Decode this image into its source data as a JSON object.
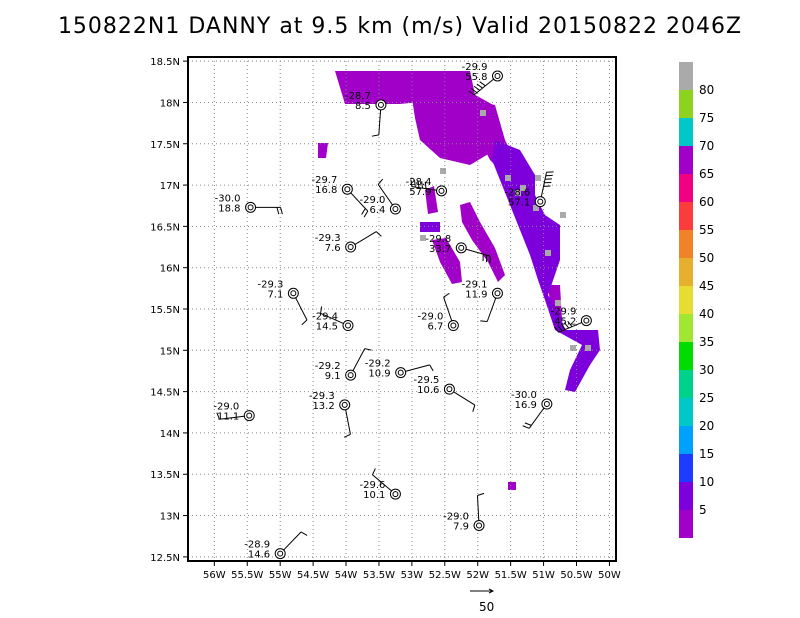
{
  "title": "150822N1 DANNY at 9.5 km (m/s) Valid 20150822 2046Z",
  "map": {
    "lon_range": [
      -56.4,
      -49.9
    ],
    "lat_range": [
      12.45,
      18.55
    ],
    "x_ticks": [
      {
        "v": -56.0,
        "label": "56W"
      },
      {
        "v": -55.5,
        "label": "55.5W"
      },
      {
        "v": -55.0,
        "label": "55W"
      },
      {
        "v": -54.5,
        "label": "54.5W"
      },
      {
        "v": -54.0,
        "label": "54W"
      },
      {
        "v": -53.5,
        "label": "53.5W"
      },
      {
        "v": -53.0,
        "label": "53W"
      },
      {
        "v": -52.5,
        "label": "52.5W"
      },
      {
        "v": -52.0,
        "label": "52W"
      },
      {
        "v": -51.5,
        "label": "51.5W"
      },
      {
        "v": -51.0,
        "label": "51W"
      },
      {
        "v": -50.5,
        "label": "50.5W"
      },
      {
        "v": -50.0,
        "label": "50W"
      }
    ],
    "y_ticks": [
      {
        "v": 12.5,
        "label": "12.5N"
      },
      {
        "v": 13.0,
        "label": "13N"
      },
      {
        "v": 13.5,
        "label": "13.5N"
      },
      {
        "v": 14.0,
        "label": "14N"
      },
      {
        "v": 14.5,
        "label": "14.5N"
      },
      {
        "v": 15.0,
        "label": "15N"
      },
      {
        "v": 15.5,
        "label": "15.5N"
      },
      {
        "v": 16.0,
        "label": "16N"
      },
      {
        "v": 16.5,
        "label": "16.5N"
      },
      {
        "v": 17.0,
        "label": "17N"
      },
      {
        "v": 17.5,
        "label": "17.5N"
      },
      {
        "v": 18.0,
        "label": "18N"
      },
      {
        "v": 18.5,
        "label": "18.5N"
      }
    ],
    "grid": true
  },
  "colorbar": {
    "labels": [
      "5",
      "10",
      "15",
      "20",
      "25",
      "30",
      "35",
      "40",
      "45",
      "50",
      "55",
      "60",
      "65",
      "70",
      "75",
      "80"
    ],
    "colors": [
      "#a000c8",
      "#7d00dc",
      "#1e3cff",
      "#00a0ff",
      "#00c8c8",
      "#00d28c",
      "#00dc00",
      "#a0e632",
      "#e6dc32",
      "#e6af2d",
      "#f08228",
      "#fa3c3c",
      "#f00082",
      "#a000c8",
      "#00c8c8",
      "#8cd21e",
      "#aaaaaa"
    ]
  },
  "observations": [
    {
      "lon": -55.45,
      "lat": 16.73,
      "temp": "-30.0",
      "speed": "18.8"
    },
    {
      "lon": -53.98,
      "lat": 16.95,
      "temp": "-29.7",
      "speed": "16.8"
    },
    {
      "lon": -53.47,
      "lat": 17.97,
      "temp": "-28.7",
      "speed": "8.5"
    },
    {
      "lon": -51.7,
      "lat": 18.32,
      "temp": "-29.9",
      "speed": "55.8"
    },
    {
      "lon": -52.55,
      "lat": 16.93,
      "temp": "-28.4",
      "speed": "57.9"
    },
    {
      "lon": -53.25,
      "lat": 16.71,
      "temp": "-29.0",
      "speed": "6.4"
    },
    {
      "lon": -51.05,
      "lat": 16.8,
      "temp": "-28.6",
      "speed": "57.1"
    },
    {
      "lon": -53.93,
      "lat": 16.25,
      "temp": "-29.3",
      "speed": "7.6"
    },
    {
      "lon": -52.25,
      "lat": 16.24,
      "temp": "-29.8",
      "speed": "33.7"
    },
    {
      "lon": -54.8,
      "lat": 15.69,
      "temp": "-29.3",
      "speed": "7.1"
    },
    {
      "lon": -51.7,
      "lat": 15.69,
      "temp": "-29.1",
      "speed": "11.9"
    },
    {
      "lon": -50.35,
      "lat": 15.36,
      "temp": "-29.9",
      "speed": "45.2"
    },
    {
      "lon": -53.97,
      "lat": 15.3,
      "temp": "-29.4",
      "speed": "14.5"
    },
    {
      "lon": -52.37,
      "lat": 15.3,
      "temp": "-29.0",
      "speed": "6.7"
    },
    {
      "lon": -53.93,
      "lat": 14.7,
      "temp": "-29.2",
      "speed": "9.1"
    },
    {
      "lon": -53.17,
      "lat": 14.73,
      "temp": "-29.2",
      "speed": "10.9"
    },
    {
      "lon": -52.43,
      "lat": 14.53,
      "temp": "-29.5",
      "speed": "10.6"
    },
    {
      "lon": -54.02,
      "lat": 14.34,
      "temp": "-29.3",
      "speed": "13.2"
    },
    {
      "lon": -50.95,
      "lat": 14.35,
      "temp": "-30.0",
      "speed": "16.9"
    },
    {
      "lon": -55.47,
      "lat": 14.21,
      "temp": "-29.0",
      "speed": "11.1"
    },
    {
      "lon": -53.25,
      "lat": 13.26,
      "temp": "-29.6",
      "speed": "10.1"
    },
    {
      "lon": -51.98,
      "lat": 12.88,
      "temp": "-29.0",
      "speed": "7.9"
    },
    {
      "lon": -55.0,
      "lat": 12.54,
      "temp": "-28.9",
      "speed": "14.6"
    }
  ],
  "reference_vector": {
    "label": "50"
  }
}
